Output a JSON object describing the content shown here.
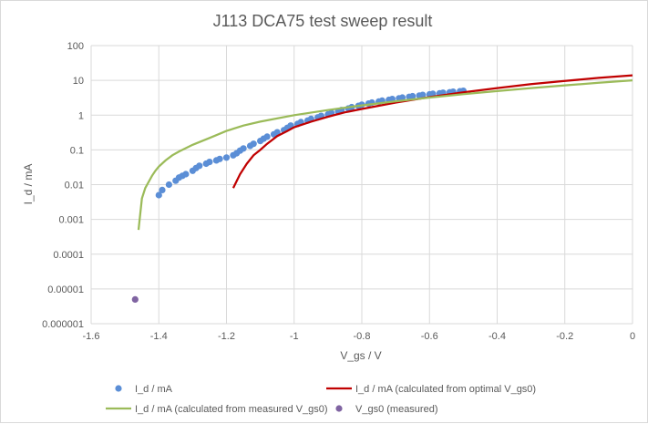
{
  "chart_data": {
    "type": "scatter",
    "title": "J113 DCA75 test sweep result",
    "xlabel": "V_gs  / V",
    "ylabel": "I_d / mA",
    "xlim": [
      -1.6,
      0
    ],
    "ylim": [
      1e-06,
      100
    ],
    "yscale": "log",
    "grid": true,
    "legend_position": "bottom",
    "x_ticks": [
      -1.6,
      -1.4,
      -1.2,
      -1,
      -0.8,
      -0.6,
      -0.4,
      -0.2,
      0
    ],
    "x_tick_labels": [
      "-1.6",
      "-1.4",
      "-1.2",
      "-1",
      "-0.8",
      "-0.6",
      "-0.4",
      "-0.2",
      "0"
    ],
    "y_ticks": [
      100,
      10,
      1,
      0.1,
      0.01,
      0.001,
      0.0001,
      1e-05,
      1e-06
    ],
    "y_tick_labels": [
      "100",
      "10",
      "1",
      "0.1",
      "0.01",
      "0.001",
      "0.0001",
      "0.00001",
      "0.000001"
    ],
    "series": [
      {
        "name": "I_d / mA",
        "style": "markers",
        "color": "#5b8ed6",
        "x": [
          -1.4,
          -1.39,
          -1.37,
          -1.35,
          -1.34,
          -1.33,
          -1.32,
          -1.3,
          -1.29,
          -1.28,
          -1.26,
          -1.25,
          -1.23,
          -1.22,
          -1.2,
          -1.18,
          -1.17,
          -1.16,
          -1.15,
          -1.13,
          -1.12,
          -1.1,
          -1.09,
          -1.08,
          -1.06,
          -1.05,
          -1.03,
          -1.02,
          -1.01,
          -0.99,
          -0.98,
          -0.96,
          -0.95,
          -0.93,
          -0.92,
          -0.9,
          -0.89,
          -0.87,
          -0.86,
          -0.84,
          -0.83,
          -0.81,
          -0.8,
          -0.78,
          -0.77,
          -0.75,
          -0.74,
          -0.72,
          -0.71,
          -0.69,
          -0.68,
          -0.66,
          -0.65,
          -0.63,
          -0.62,
          -0.6,
          -0.59,
          -0.57,
          -0.56,
          -0.54,
          -0.53,
          -0.51,
          -0.5
        ],
        "y": [
          0.005,
          0.007,
          0.01,
          0.013,
          0.016,
          0.018,
          0.02,
          0.025,
          0.03,
          0.035,
          0.04,
          0.045,
          0.05,
          0.055,
          0.06,
          0.07,
          0.08,
          0.095,
          0.11,
          0.13,
          0.15,
          0.18,
          0.21,
          0.24,
          0.28,
          0.32,
          0.37,
          0.43,
          0.5,
          0.56,
          0.63,
          0.7,
          0.78,
          0.86,
          0.95,
          1.05,
          1.15,
          1.27,
          1.4,
          1.55,
          1.7,
          1.85,
          2.0,
          2.15,
          2.3,
          2.45,
          2.6,
          2.75,
          2.9,
          3.05,
          3.2,
          3.35,
          3.5,
          3.65,
          3.8,
          3.95,
          4.1,
          4.25,
          4.4,
          4.55,
          4.7,
          4.85,
          5.0
        ]
      },
      {
        "name": "I_d / mA (calculated from optimal V_gs0)",
        "style": "line",
        "color": "#c00000",
        "x": [
          -1.18,
          -1.16,
          -1.14,
          -1.12,
          -1.1,
          -1.08,
          -1.05,
          -1.02,
          -1.0,
          -0.95,
          -0.9,
          -0.85,
          -0.8,
          -0.7,
          -0.6,
          -0.5,
          -0.4,
          -0.3,
          -0.2,
          -0.1,
          0.0
        ],
        "y": [
          0.008,
          0.02,
          0.04,
          0.07,
          0.1,
          0.15,
          0.25,
          0.35,
          0.45,
          0.65,
          0.9,
          1.2,
          1.5,
          2.3,
          3.3,
          4.5,
          6.0,
          7.8,
          9.6,
          11.8,
          14.0
        ]
      },
      {
        "name": "I_d / mA (calculated from measured V_gs0)",
        "style": "line",
        "color": "#9bbb59",
        "x": [
          -1.46,
          -1.45,
          -1.44,
          -1.43,
          -1.42,
          -1.41,
          -1.4,
          -1.38,
          -1.36,
          -1.34,
          -1.3,
          -1.25,
          -1.2,
          -1.15,
          -1.1,
          -1.0,
          -0.9,
          -0.8,
          -0.7,
          -0.6,
          -0.5,
          -0.4,
          -0.3,
          -0.2,
          -0.1,
          0.0
        ],
        "y": [
          0.0005,
          0.004,
          0.008,
          0.012,
          0.018,
          0.025,
          0.033,
          0.05,
          0.07,
          0.09,
          0.14,
          0.22,
          0.35,
          0.5,
          0.65,
          1.0,
          1.4,
          1.9,
          2.5,
          3.2,
          4.0,
          4.9,
          6.0,
          7.2,
          8.5,
          10.0
        ]
      },
      {
        "name": "V_gs0 (measured)",
        "style": "markers",
        "color": "#8064a2",
        "x": [
          -1.47
        ],
        "y": [
          5e-06
        ]
      }
    ]
  }
}
